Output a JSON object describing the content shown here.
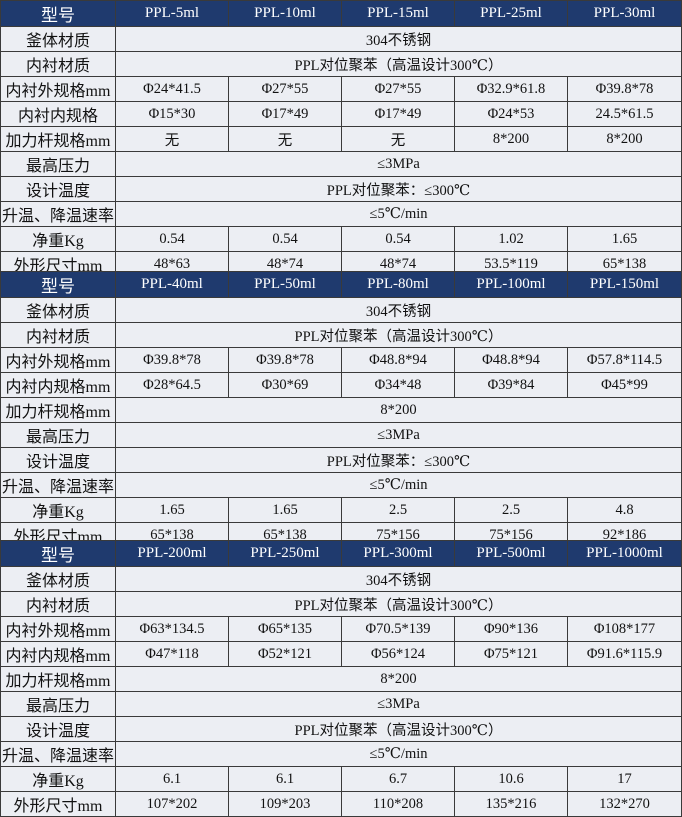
{
  "colors": {
    "header_bg": "#1f3a6e",
    "header_text": "#ffffff",
    "cell_bg": "#eceef3"
  },
  "sections": [
    {
      "header_label": "型号",
      "models": [
        "PPL-5ml",
        "PPL-10ml",
        "PPL-15ml",
        "PPL-25ml",
        "PPL-30ml"
      ],
      "rows": [
        {
          "label": "釜体材质",
          "merged": "304不锈钢"
        },
        {
          "label": "内衬材质",
          "merged": "PPL对位聚苯（高温设计300℃）"
        },
        {
          "label": "内衬外规格mm",
          "values": [
            "Φ24*41.5",
            "Φ27*55",
            "Φ27*55",
            "Φ32.9*61.8",
            "Φ39.8*78"
          ]
        },
        {
          "label": "内衬内规格",
          "values": [
            "Φ15*30",
            "Φ17*49",
            "Φ17*49",
            "Φ24*53",
            "24.5*61.5"
          ]
        },
        {
          "label": "加力杆规格mm",
          "values": [
            "无",
            "无",
            "无",
            "8*200",
            "8*200"
          ]
        },
        {
          "label": "最高压力",
          "merged": "≤3MPa"
        },
        {
          "label": "设计温度",
          "merged": "PPL对位聚苯：≤300℃"
        },
        {
          "label": "升温、降温速率",
          "merged": "≤5℃/min"
        },
        {
          "label": "净重Kg",
          "values": [
            "0.54",
            "0.54",
            "0.54",
            "1.02",
            "1.65"
          ]
        },
        {
          "label": "外形尺寸mm",
          "values": [
            "48*63",
            "48*74",
            "48*74",
            "53.5*119",
            "65*138"
          ]
        }
      ]
    },
    {
      "header_label": "型号",
      "models": [
        "PPL-40ml",
        "PPL-50ml",
        "PPL-80ml",
        "PPL-100ml",
        "PPL-150ml"
      ],
      "rows": [
        {
          "label": "釜体材质",
          "merged": "304不锈钢"
        },
        {
          "label": "内衬材质",
          "merged": "PPL对位聚苯（高温设计300℃）"
        },
        {
          "label": "内衬外规格mm",
          "values": [
            "Φ39.8*78",
            "Φ39.8*78",
            "Φ48.8*94",
            "Φ48.8*94",
            "Φ57.8*114.5"
          ]
        },
        {
          "label": "内衬内规格mm",
          "values": [
            "Φ28*64.5",
            "Φ30*69",
            "Φ34*48",
            "Φ39*84",
            "Φ45*99"
          ]
        },
        {
          "label": "加力杆规格mm",
          "merged": "8*200"
        },
        {
          "label": "最高压力",
          "merged": "≤3MPa"
        },
        {
          "label": "设计温度",
          "merged": "PPL对位聚苯：≤300℃"
        },
        {
          "label": "升温、降温速率",
          "merged": "≤5℃/min"
        },
        {
          "label": "净重Kg",
          "values": [
            "1.65",
            "1.65",
            "2.5",
            "2.5",
            "4.8"
          ]
        },
        {
          "label": "外形尺寸mm",
          "values": [
            "65*138",
            "65*138",
            "75*156",
            "75*156",
            "92*186"
          ]
        }
      ]
    },
    {
      "header_label": "型号",
      "models": [
        "PPL-200ml",
        "PPL-250ml",
        "PPL-300ml",
        "PPL-500ml",
        "PPL-1000ml"
      ],
      "rows": [
        {
          "label": "釜体材质",
          "merged": "304不锈钢"
        },
        {
          "label": "内衬材质",
          "merged": "PPL对位聚苯（高温设计300℃）"
        },
        {
          "label": "内衬外规格mm",
          "values": [
            "Φ63*134.5",
            "Φ65*135",
            "Φ70.5*139",
            "Φ90*136",
            "Φ108*177"
          ]
        },
        {
          "label": "内衬内规格mm",
          "values": [
            "Φ47*118",
            "Φ52*121",
            "Φ56*124",
            "Φ75*121",
            "Φ91.6*115.9"
          ]
        },
        {
          "label": "加力杆规格mm",
          "merged": "8*200"
        },
        {
          "label": "最高压力",
          "merged": "≤3MPa"
        },
        {
          "label": "设计温度",
          "merged": "PPL对位聚苯（高温设计300℃）"
        },
        {
          "label": "升温、降温速率",
          "merged": "≤5℃/min"
        },
        {
          "label": "净重Kg",
          "values": [
            "6.1",
            "6.1",
            "6.7",
            "10.6",
            "17"
          ]
        },
        {
          "label": "外形尺寸mm",
          "values": [
            "107*202",
            "109*203",
            "110*208",
            "135*216",
            "132*270"
          ]
        }
      ]
    }
  ]
}
